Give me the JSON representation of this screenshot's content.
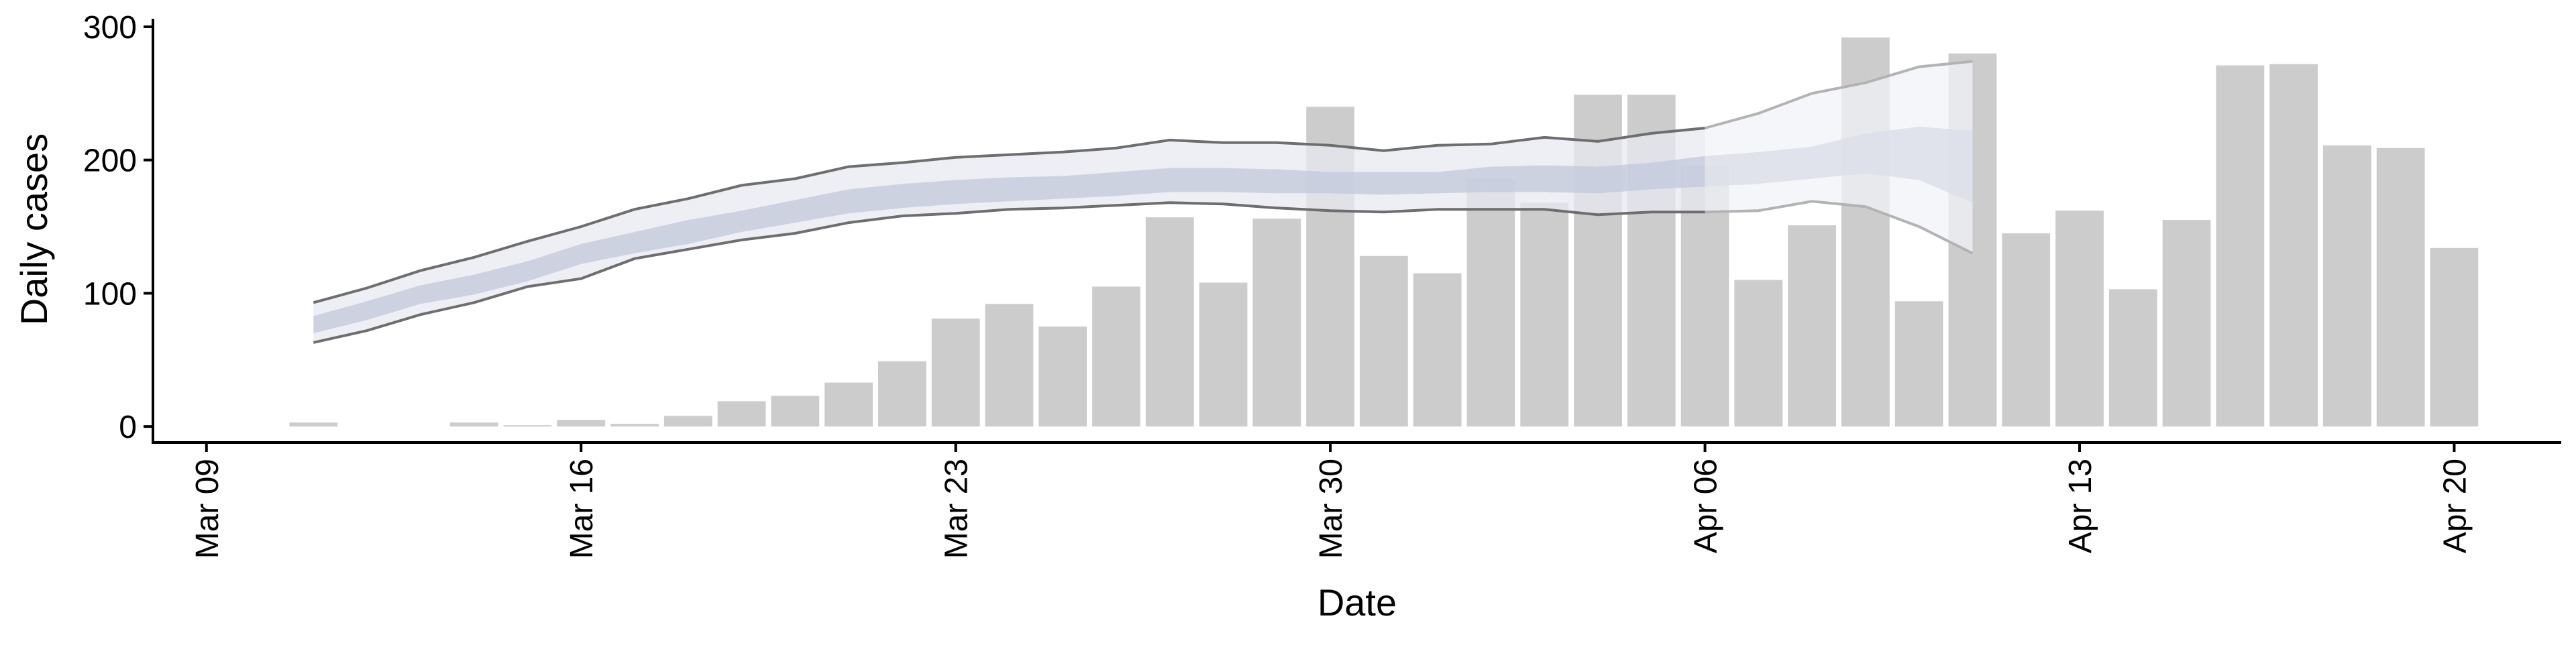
{
  "chart_data": {
    "type": "bar",
    "xlabel": "Date",
    "ylabel": "Daily cases",
    "ylim": [
      -12,
      305
    ],
    "xlim": [
      "2020-03-08",
      "2020-04-22"
    ],
    "x_ticks": [
      {
        "date": "2020-03-09",
        "label": "Mar 09"
      },
      {
        "date": "2020-03-16",
        "label": "Mar 16"
      },
      {
        "date": "2020-03-23",
        "label": "Mar 23"
      },
      {
        "date": "2020-03-30",
        "label": "Mar 30"
      },
      {
        "date": "2020-04-06",
        "label": "Apr 06"
      },
      {
        "date": "2020-04-13",
        "label": "Apr 13"
      },
      {
        "date": "2020-04-20",
        "label": "Apr 20"
      }
    ],
    "y_ticks": [
      0,
      100,
      200,
      300
    ],
    "grid": false,
    "legend": "none",
    "bars": {
      "dates": [
        "2020-03-11",
        "2020-03-12",
        "2020-03-13",
        "2020-03-14",
        "2020-03-15",
        "2020-03-16",
        "2020-03-17",
        "2020-03-18",
        "2020-03-19",
        "2020-03-20",
        "2020-03-21",
        "2020-03-22",
        "2020-03-23",
        "2020-03-24",
        "2020-03-25",
        "2020-03-26",
        "2020-03-27",
        "2020-03-28",
        "2020-03-29",
        "2020-03-30",
        "2020-03-31",
        "2020-04-01",
        "2020-04-02",
        "2020-04-03",
        "2020-04-04",
        "2020-04-05",
        "2020-04-06",
        "2020-04-07",
        "2020-04-08",
        "2020-04-09",
        "2020-04-10",
        "2020-04-11",
        "2020-04-12",
        "2020-04-13",
        "2020-04-14",
        "2020-04-15",
        "2020-04-16",
        "2020-04-17",
        "2020-04-18",
        "2020-04-19",
        "2020-04-20"
      ],
      "values": [
        3,
        0,
        0,
        3,
        1,
        5,
        2,
        8,
        19,
        23,
        33,
        49,
        81,
        92,
        75,
        105,
        157,
        108,
        156,
        240,
        128,
        115,
        186,
        168,
        249,
        249,
        196,
        110,
        151,
        292,
        94,
        280,
        145,
        162,
        103,
        155,
        271,
        272,
        211,
        209,
        134
      ],
      "color": "#cccccc"
    },
    "series": [
      {
        "kind": "ribbon",
        "x": [
          "2020-03-11",
          "2020-03-12",
          "2020-03-13",
          "2020-03-14",
          "2020-03-15",
          "2020-03-16",
          "2020-03-17",
          "2020-03-18",
          "2020-03-19",
          "2020-03-20",
          "2020-03-21",
          "2020-03-22",
          "2020-03-23",
          "2020-03-24",
          "2020-03-25",
          "2020-03-26",
          "2020-03-27",
          "2020-03-28",
          "2020-03-29",
          "2020-03-30",
          "2020-03-31",
          "2020-04-01",
          "2020-04-02",
          "2020-04-03",
          "2020-04-04",
          "2020-04-05",
          "2020-04-06"
        ],
        "upper": [
          93,
          104,
          117,
          127,
          139,
          150,
          163,
          171,
          181,
          186,
          195,
          198,
          202,
          204,
          206,
          209,
          215,
          213,
          213,
          211,
          207,
          211,
          212,
          217,
          214,
          220,
          224
        ],
        "lower": [
          63,
          72,
          84,
          93,
          105,
          111,
          126,
          133,
          140,
          145,
          153,
          158,
          160,
          163,
          164,
          166,
          168,
          167,
          164,
          162,
          161,
          163,
          163,
          163,
          159,
          161,
          161
        ],
        "upper_mid": [
          83,
          94,
          106,
          114,
          124,
          137,
          146,
          155,
          162,
          170,
          178,
          182,
          185,
          187,
          188,
          191,
          194,
          194,
          193,
          191,
          191,
          191,
          195,
          196,
          195,
          198,
          203
        ],
        "lower_mid": [
          70,
          80,
          92,
          99,
          109,
          122,
          130,
          137,
          146,
          153,
          160,
          164,
          167,
          169,
          171,
          173,
          176,
          176,
          175,
          175,
          174,
          175,
          176,
          176,
          175,
          178,
          180
        ],
        "fill_outer": "#e8eaf2",
        "fill_inner": "#c4cadc",
        "line_color": "#6e6e6e"
      },
      {
        "kind": "ribbon",
        "x": [
          "2020-04-06",
          "2020-04-07",
          "2020-04-08",
          "2020-04-09",
          "2020-04-10",
          "2020-04-11"
        ],
        "upper": [
          224,
          235,
          250,
          258,
          270,
          274
        ],
        "lower": [
          161,
          162,
          169,
          165,
          150,
          130
        ],
        "upper_mid": [
          203,
          206,
          210,
          220,
          225,
          222
        ],
        "lower_mid": [
          180,
          182,
          186,
          190,
          185,
          168
        ],
        "fill_outer": "#f2f3f8",
        "fill_inner": "#dcdfe9",
        "line_color": "#b3b3b3"
      }
    ]
  }
}
